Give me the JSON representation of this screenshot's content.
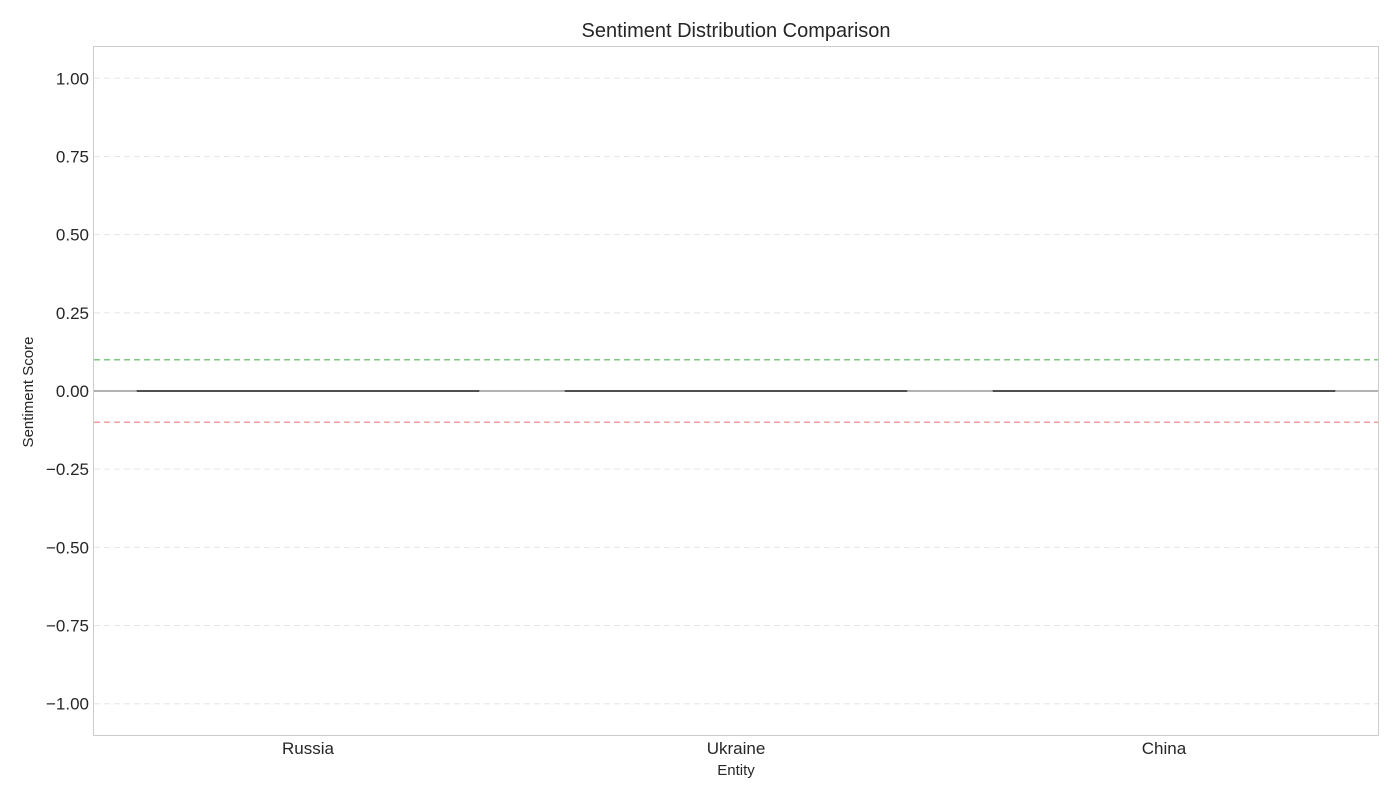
{
  "chart_data": {
    "type": "box",
    "title": "Sentiment Distribution Comparison",
    "xlabel": "Entity",
    "ylabel": "Sentiment Score",
    "categories": [
      "Russia",
      "Ukraine",
      "China"
    ],
    "boxes": [
      {
        "category": "Russia",
        "min": 0.0,
        "q1": 0.0,
        "median": 0.0,
        "q3": 0.0,
        "max": 0.0
      },
      {
        "category": "Ukraine",
        "min": 0.0,
        "q1": 0.0,
        "median": 0.0,
        "q3": 0.0,
        "max": 0.0
      },
      {
        "category": "China",
        "min": 0.0,
        "q1": 0.0,
        "median": 0.0,
        "q3": 0.0,
        "max": 0.0
      }
    ],
    "ylim": [
      -1.1,
      1.1
    ],
    "yticks": [
      1.0,
      0.75,
      0.5,
      0.25,
      0.0,
      -0.25,
      -0.5,
      -0.75,
      -1.0
    ],
    "ytick_labels": [
      "1.00",
      "0.75",
      "0.50",
      "0.25",
      "0.00",
      "−0.25",
      "−0.50",
      "−0.75",
      "−1.00"
    ],
    "reference_lines": [
      {
        "y": 0.1,
        "color": "#7fc97f",
        "style": "dashed"
      },
      {
        "y": -0.1,
        "color": "#f4a09c",
        "style": "dashed"
      },
      {
        "y": 0.0,
        "color": "#999999",
        "style": "solid"
      }
    ],
    "grid": true,
    "colors": {
      "median": "#262626",
      "grid": "#e5e5e5",
      "spine": "#cccccc"
    }
  }
}
